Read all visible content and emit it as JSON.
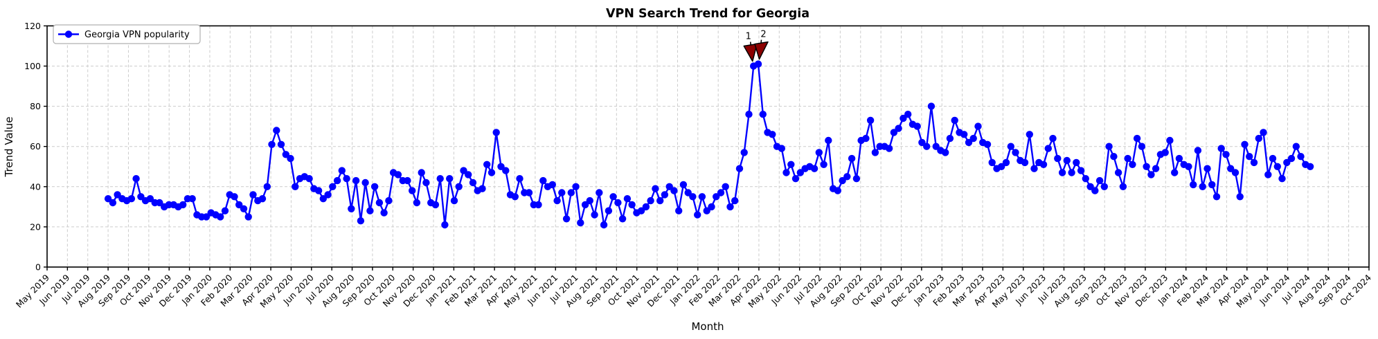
{
  "chart_data": {
    "type": "line",
    "title": "VPN Search Trend for Georgia",
    "xlabel": "Month",
    "ylabel": "Trend Value",
    "ylim": [
      0,
      120
    ],
    "yticks": [
      0,
      20,
      40,
      60,
      80,
      100,
      120
    ],
    "grid": true,
    "legend": {
      "position": "upper left",
      "label": "Georgia VPN popularity",
      "color": "#0000FF",
      "marker": "circle"
    },
    "x_tick_labels": [
      "May 2019",
      "Jun 2019",
      "Jul 2019",
      "Aug 2019",
      "Sep 2019",
      "Oct 2019",
      "Nov 2019",
      "Dec 2019",
      "Jan 2020",
      "Feb 2020",
      "Mar 2020",
      "Apr 2020",
      "May 2020",
      "Jun 2020",
      "Jul 2020",
      "Aug 2020",
      "Sep 2020",
      "Oct 2020",
      "Nov 2020",
      "Dec 2020",
      "Jan 2021",
      "Feb 2021",
      "Mar 2021",
      "Apr 2021",
      "May 2021",
      "Jun 2021",
      "Jul 2021",
      "Aug 2021",
      "Sep 2021",
      "Oct 2021",
      "Nov 2021",
      "Dec 2021",
      "Jan 2022",
      "Feb 2022",
      "Mar 2022",
      "Apr 2022",
      "May 2022",
      "Jun 2022",
      "Jul 2022",
      "Aug 2022",
      "Sep 2022",
      "Oct 2022",
      "Nov 2022",
      "Dec 2022",
      "Jan 2023",
      "Feb 2023",
      "Mar 2023",
      "Apr 2023",
      "May 2023",
      "Jun 2023",
      "Jul 2023",
      "Aug 2023",
      "Sep 2023",
      "Oct 2023",
      "Nov 2023",
      "Dec 2023",
      "Jan 2024",
      "Feb 2024",
      "Mar 2024",
      "Apr 2024",
      "May 2024",
      "Jun 2024",
      "Jul 2024",
      "Aug 2024",
      "Sep 2024",
      "Oct 2024"
    ],
    "series": [
      {
        "name": "Georgia VPN popularity",
        "color": "#0000FF",
        "cadence": "weekly",
        "first_point_month": "Aug 2019",
        "last_point_month": "Jul 2024",
        "start_month_index": 3,
        "points_per_month": 4.348,
        "values": [
          34,
          32,
          36,
          34,
          33,
          34,
          44,
          35,
          33,
          34,
          32,
          32,
          30,
          31,
          31,
          30,
          31,
          34,
          34,
          26,
          25,
          25,
          27,
          26,
          25,
          28,
          36,
          35,
          31,
          29,
          25,
          36,
          33,
          34,
          40,
          61,
          68,
          61,
          56,
          54,
          40,
          44,
          45,
          44,
          39,
          38,
          34,
          36,
          40,
          43,
          48,
          44,
          29,
          43,
          23,
          42,
          28,
          40,
          32,
          27,
          33,
          47,
          46,
          43,
          43,
          38,
          32,
          47,
          42,
          32,
          31,
          44,
          21,
          44,
          33,
          40,
          48,
          46,
          42,
          38,
          39,
          51,
          47,
          67,
          50,
          48,
          36,
          35,
          44,
          37,
          37,
          31,
          31,
          43,
          40,
          41,
          33,
          37,
          24,
          37,
          40,
          22,
          31,
          33,
          26,
          37,
          21,
          28,
          35,
          32,
          24,
          34,
          31,
          27,
          28,
          30,
          33,
          39,
          33,
          36,
          40,
          38,
          28,
          41,
          37,
          35,
          26,
          35,
          28,
          30,
          35,
          37,
          40,
          30,
          33,
          49,
          57,
          76,
          100,
          101,
          76,
          67,
          66,
          60,
          59,
          47,
          51,
          44,
          47,
          49,
          50,
          49,
          57,
          51,
          63,
          39,
          38,
          43,
          45,
          54,
          44,
          63,
          64,
          73,
          57,
          60,
          60,
          59,
          67,
          69,
          74,
          76,
          71,
          70,
          62,
          60,
          80,
          60,
          58,
          57,
          64,
          73,
          67,
          66,
          62,
          64,
          70,
          62,
          61,
          52,
          49,
          50,
          52,
          60,
          57,
          53,
          52,
          66,
          49,
          52,
          51,
          59,
          64,
          54,
          47,
          53,
          47,
          52,
          48,
          44,
          40,
          38,
          43,
          40,
          60,
          55,
          47,
          40,
          54,
          51,
          64,
          60,
          50,
          46,
          49,
          56,
          57,
          63,
          47,
          54,
          51,
          50,
          41,
          58,
          40,
          49,
          41,
          35,
          59,
          56,
          49,
          47,
          35,
          61,
          55,
          52,
          64,
          67,
          46,
          54,
          50,
          44,
          52,
          54,
          60,
          55,
          51,
          50
        ]
      }
    ],
    "annotations": [
      {
        "label": "1",
        "point_index": 138,
        "value": 100,
        "color": "#8B0000"
      },
      {
        "label": "2",
        "point_index": 139,
        "value": 101,
        "color": "#8B0000"
      }
    ]
  },
  "colors": {
    "line": "#0000FF",
    "marker": "#0000FF",
    "grid": "#cccccc",
    "spine": "#000000",
    "annotation_fill": "#8B0000",
    "annotation_edge": "#000000",
    "background": "#ffffff",
    "legend_border": "#b0b0b0"
  }
}
